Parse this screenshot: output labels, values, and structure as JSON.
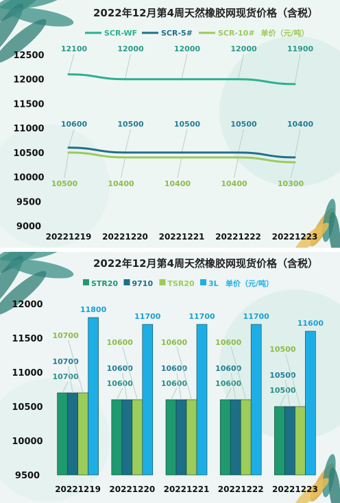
{
  "charts": [
    {
      "type": "line",
      "title": "2022年12月第4周天然橡胶网现货价格（含税）",
      "unit_label": "单价（元/吨）",
      "categories": [
        "20221219",
        "20221220",
        "20221221",
        "20221222",
        "20221223"
      ],
      "ylim": [
        9000,
        12500
      ],
      "yticks": [
        "12500",
        "12000",
        "11500",
        "11000",
        "10500",
        "10000",
        "9500",
        "9000"
      ],
      "legend_position": "top",
      "series": [
        {
          "name": "SCR-WF",
          "color": "#2bb08e",
          "values": [
            12100,
            12000,
            12000,
            12000,
            11900
          ],
          "labels": [
            "12100",
            "12000",
            "12000",
            "12000",
            "11900"
          ],
          "label_color": "#2a9a86"
        },
        {
          "name": "SCR-5#",
          "color": "#1f6f8b",
          "values": [
            10600,
            10500,
            10500,
            10500,
            10400
          ],
          "labels": [
            "10600",
            "10500",
            "10500",
            "10500",
            "10400"
          ],
          "label_color": "#227d96"
        },
        {
          "name": "SCR-10#",
          "color": "#9cc85a",
          "values": [
            10500,
            10400,
            10400,
            10400,
            10300
          ],
          "labels": [
            "10500",
            "10400",
            "10400",
            "10400",
            "10300"
          ],
          "label_color": "#8cbb4a"
        }
      ]
    },
    {
      "type": "bar",
      "title": "2022年12月第4周天然橡胶网现货价格（含税）",
      "unit_label": "单价（元/吨）",
      "categories": [
        "20221219",
        "20221220",
        "20221221",
        "20221222",
        "20221223"
      ],
      "ylim": [
        9500,
        12000
      ],
      "yticks": [
        "12000",
        "11500",
        "11000",
        "10500",
        "10000",
        "9500"
      ],
      "legend_position": "top",
      "series": [
        {
          "name": "STR20",
          "color": "#1f9a6e",
          "values": [
            10700,
            10600,
            10600,
            10600,
            10500
          ],
          "labels": [
            "10700",
            "10600",
            "10600",
            "10600",
            "10500"
          ],
          "label_color": "#2a8f86"
        },
        {
          "name": "9710",
          "color": "#1c6f86",
          "values": [
            10700,
            10600,
            10600,
            10600,
            10500
          ],
          "labels": [
            "10700",
            "10600",
            "10600",
            "10600",
            "10500"
          ],
          "label_color": "#227d96"
        },
        {
          "name": "TSR20",
          "color": "#9ccc5a",
          "values": [
            10700,
            10600,
            10600,
            10600,
            10500
          ],
          "labels": [
            "10700",
            "10600",
            "10600",
            "10600",
            "10500"
          ],
          "label_color": "#8cbb4a"
        },
        {
          "name": "3L",
          "color": "#1eaee6",
          "values": [
            11800,
            11700,
            11700,
            11700,
            11600
          ],
          "labels": [
            "11800",
            "11700",
            "11700",
            "11700",
            "11600"
          ],
          "label_color": "#1c9fd6"
        }
      ]
    }
  ]
}
